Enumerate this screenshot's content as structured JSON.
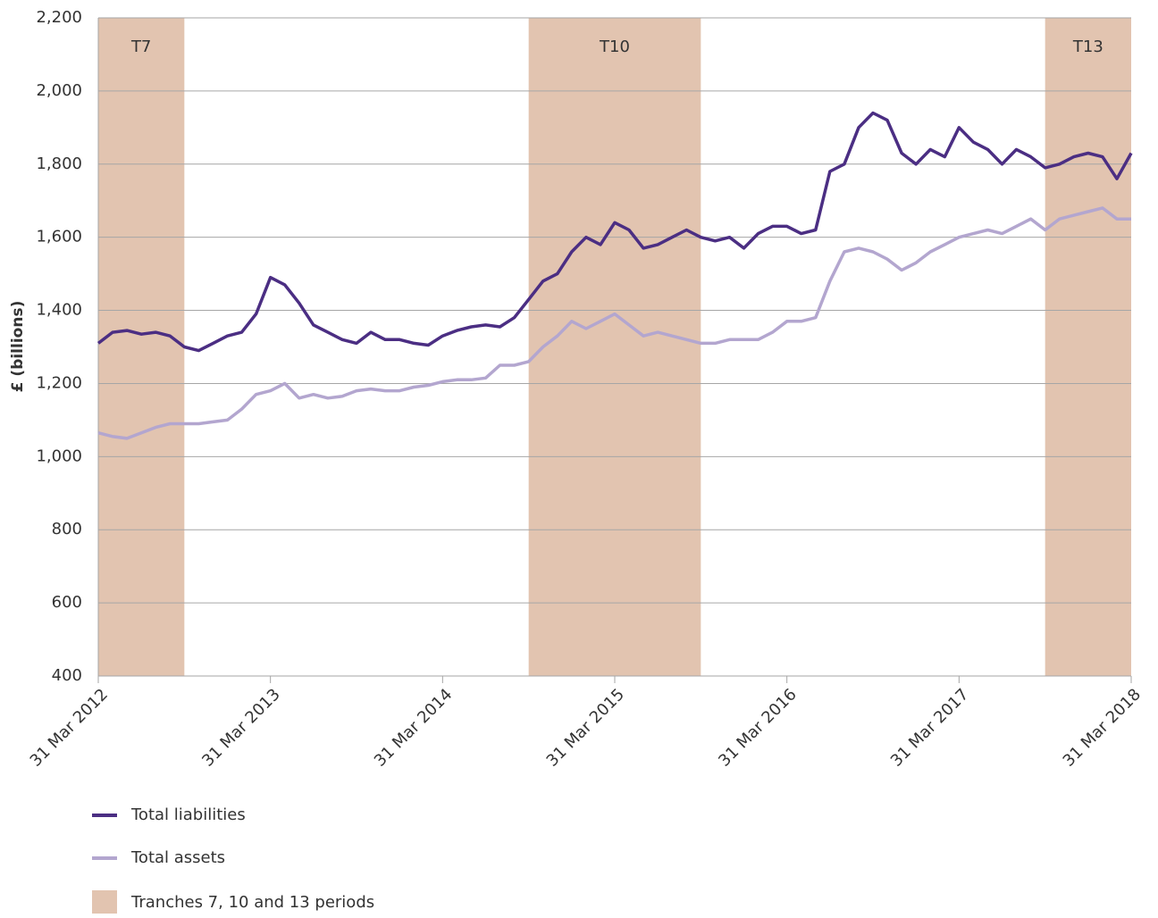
{
  "chart_data": {
    "type": "line",
    "y_label": "£ (billions)",
    "xlim": [
      2012.25,
      2018.25
    ],
    "xticks": [
      {
        "value": 2012.25,
        "label": "31 Mar 2012"
      },
      {
        "value": 2013.25,
        "label": "31 Mar 2013"
      },
      {
        "value": 2014.25,
        "label": "31 Mar 2014"
      },
      {
        "value": 2015.25,
        "label": "31 Mar 2015"
      },
      {
        "value": 2016.25,
        "label": "31 Mar 2016"
      },
      {
        "value": 2017.25,
        "label": "31 Mar 2017"
      },
      {
        "value": 2018.25,
        "label": "31 Mar 2018"
      }
    ],
    "ylim": [
      400,
      2200
    ],
    "yticks": [
      400,
      600,
      800,
      {
        "value": 1000,
        "label": "1,000"
      },
      {
        "value": 1200,
        "label": "1,200"
      },
      {
        "value": 1400,
        "label": "1,400"
      },
      {
        "value": 1600,
        "label": "1,600"
      },
      {
        "value": 1800,
        "label": "1,800"
      },
      {
        "value": 2000,
        "label": "2,000"
      },
      {
        "value": 2200,
        "label": "2,200"
      }
    ],
    "grid": true,
    "periods": {
      "name": "Tranches 7, 10 and 13 periods",
      "color": "#e2c4b0",
      "spans": [
        {
          "label": "T7",
          "start": 2012.25,
          "end": 2012.75
        },
        {
          "label": "T10",
          "start": 2014.75,
          "end": 2015.75
        },
        {
          "label": "T13",
          "start": 2017.75,
          "end": 2018.25
        }
      ]
    },
    "x": [
      2012.25,
      2012.3333,
      2012.4167,
      2012.5,
      2012.5833,
      2012.6667,
      2012.75,
      2012.8333,
      2012.9167,
      2013,
      2013.0833,
      2013.1667,
      2013.25,
      2013.3333,
      2013.4167,
      2013.5,
      2013.5833,
      2013.6667,
      2013.75,
      2013.8333,
      2013.9167,
      2014,
      2014.0833,
      2014.1667,
      2014.25,
      2014.3333,
      2014.4167,
      2014.5,
      2014.5833,
      2014.6667,
      2014.75,
      2014.8333,
      2014.9167,
      2015,
      2015.0833,
      2015.1667,
      2015.25,
      2015.3333,
      2015.4167,
      2015.5,
      2015.5833,
      2015.6667,
      2015.75,
      2015.8333,
      2015.9167,
      2016,
      2016.0833,
      2016.1667,
      2016.25,
      2016.3333,
      2016.4167,
      2016.5,
      2016.5833,
      2016.6667,
      2016.75,
      2016.8333,
      2016.9167,
      2017,
      2017.0833,
      2017.1667,
      2017.25,
      2017.3333,
      2017.4167,
      2017.5,
      2017.5833,
      2017.6667,
      2017.75,
      2017.8333,
      2017.9167,
      2018,
      2018.0833,
      2018.1667,
      2018.25
    ],
    "series": [
      {
        "name": "Total liabilities",
        "color": "#4b2e83",
        "values": [
          1310,
          1340,
          1345,
          1335,
          1340,
          1330,
          1300,
          1290,
          1310,
          1330,
          1340,
          1390,
          1490,
          1470,
          1420,
          1360,
          1340,
          1320,
          1310,
          1340,
          1320,
          1320,
          1310,
          1305,
          1330,
          1345,
          1355,
          1360,
          1355,
          1380,
          1430,
          1480,
          1500,
          1560,
          1600,
          1580,
          1640,
          1620,
          1570,
          1580,
          1600,
          1620,
          1600,
          1590,
          1600,
          1570,
          1610,
          1630,
          1630,
          1610,
          1620,
          1780,
          1800,
          1900,
          1940,
          1920,
          1830,
          1800,
          1840,
          1820,
          1900,
          1860,
          1840,
          1800,
          1840,
          1820,
          1790,
          1800,
          1820,
          1830,
          1820,
          1760,
          1830
        ]
      },
      {
        "name": "Total assets",
        "color": "#b3a6cf",
        "values": [
          1065,
          1055,
          1050,
          1065,
          1080,
          1090,
          1090,
          1090,
          1095,
          1100,
          1130,
          1170,
          1180,
          1200,
          1160,
          1170,
          1160,
          1165,
          1180,
          1185,
          1180,
          1180,
          1190,
          1195,
          1205,
          1210,
          1210,
          1215,
          1250,
          1250,
          1260,
          1300,
          1330,
          1370,
          1350,
          1370,
          1390,
          1360,
          1330,
          1340,
          1330,
          1320,
          1310,
          1310,
          1320,
          1320,
          1320,
          1340,
          1370,
          1370,
          1380,
          1480,
          1560,
          1570,
          1560,
          1540,
          1510,
          1530,
          1560,
          1580,
          1600,
          1610,
          1620,
          1610,
          1630,
          1650,
          1620,
          1650,
          1660,
          1670,
          1680,
          1650,
          1650
        ]
      }
    ]
  }
}
